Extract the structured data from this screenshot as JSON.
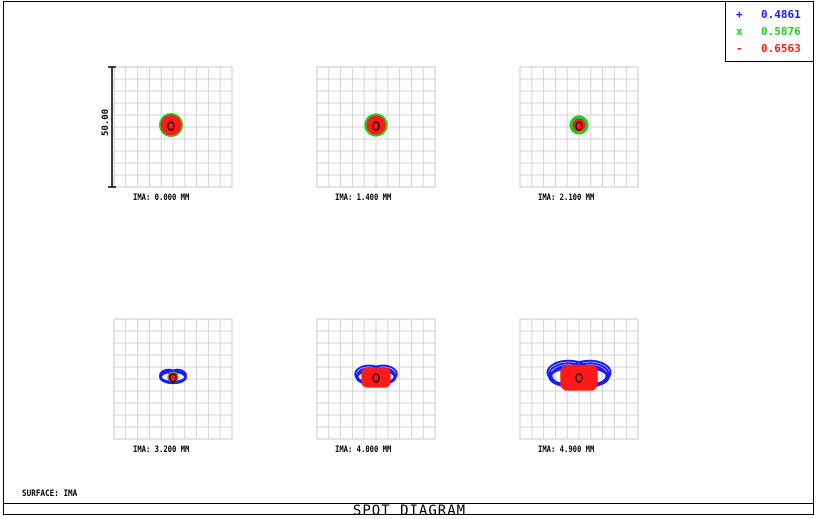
{
  "window": {
    "title": "SPOT DIAGRAM"
  },
  "legend": {
    "entries": [
      {
        "symbol": "+",
        "wavelength": "0.4861",
        "color": "#1a1aff"
      },
      {
        "symbol": "x",
        "wavelength": "0.5876",
        "color": "#22cc22"
      },
      {
        "symbol": "-",
        "wavelength": "0.6563",
        "color": "#ff1a1a"
      }
    ]
  },
  "surface_label": "SURFACE: IMA",
  "scale_bar_label": "50.00",
  "chart_data": {
    "type": "scatter",
    "title": "SPOT DIAGRAM",
    "series": [
      {
        "name": "0.4861",
        "color": "#1a1aff"
      },
      {
        "name": "0.5876",
        "color": "#22cc22"
      },
      {
        "name": "0.6563",
        "color": "#ff1a1a"
      }
    ],
    "fields": [
      {
        "label": "IMA: 0.000 MM",
        "blue_w": 0.36,
        "blue_h": 0.28,
        "green_r": 0.3,
        "red_r": 0.26,
        "flare": 0
      },
      {
        "label": "IMA: 1.400 MM",
        "blue_w": 0.36,
        "blue_h": 0.24,
        "green_r": 0.29,
        "red_r": 0.24,
        "flare": 0
      },
      {
        "label": "IMA: 2.100 MM",
        "blue_w": 0.4,
        "blue_h": 0.16,
        "green_r": 0.24,
        "red_r": 0.16,
        "flare": 0
      },
      {
        "label": "IMA: 3.200 MM",
        "blue_w": 0.62,
        "blue_h": 0.28,
        "green_r": 0.14,
        "red_r": 0.12,
        "flare": 1
      },
      {
        "label": "IMA: 4.000 MM",
        "blue_w": 0.95,
        "blue_h": 0.38,
        "green_r": 0.16,
        "red_r": 0.28,
        "flare": 2
      },
      {
        "label": "IMA: 4.900 MM",
        "blue_w": 1.45,
        "blue_h": 0.52,
        "green_r": 0.18,
        "red_r": 0.36,
        "flare": 3
      }
    ],
    "grid": true
  }
}
